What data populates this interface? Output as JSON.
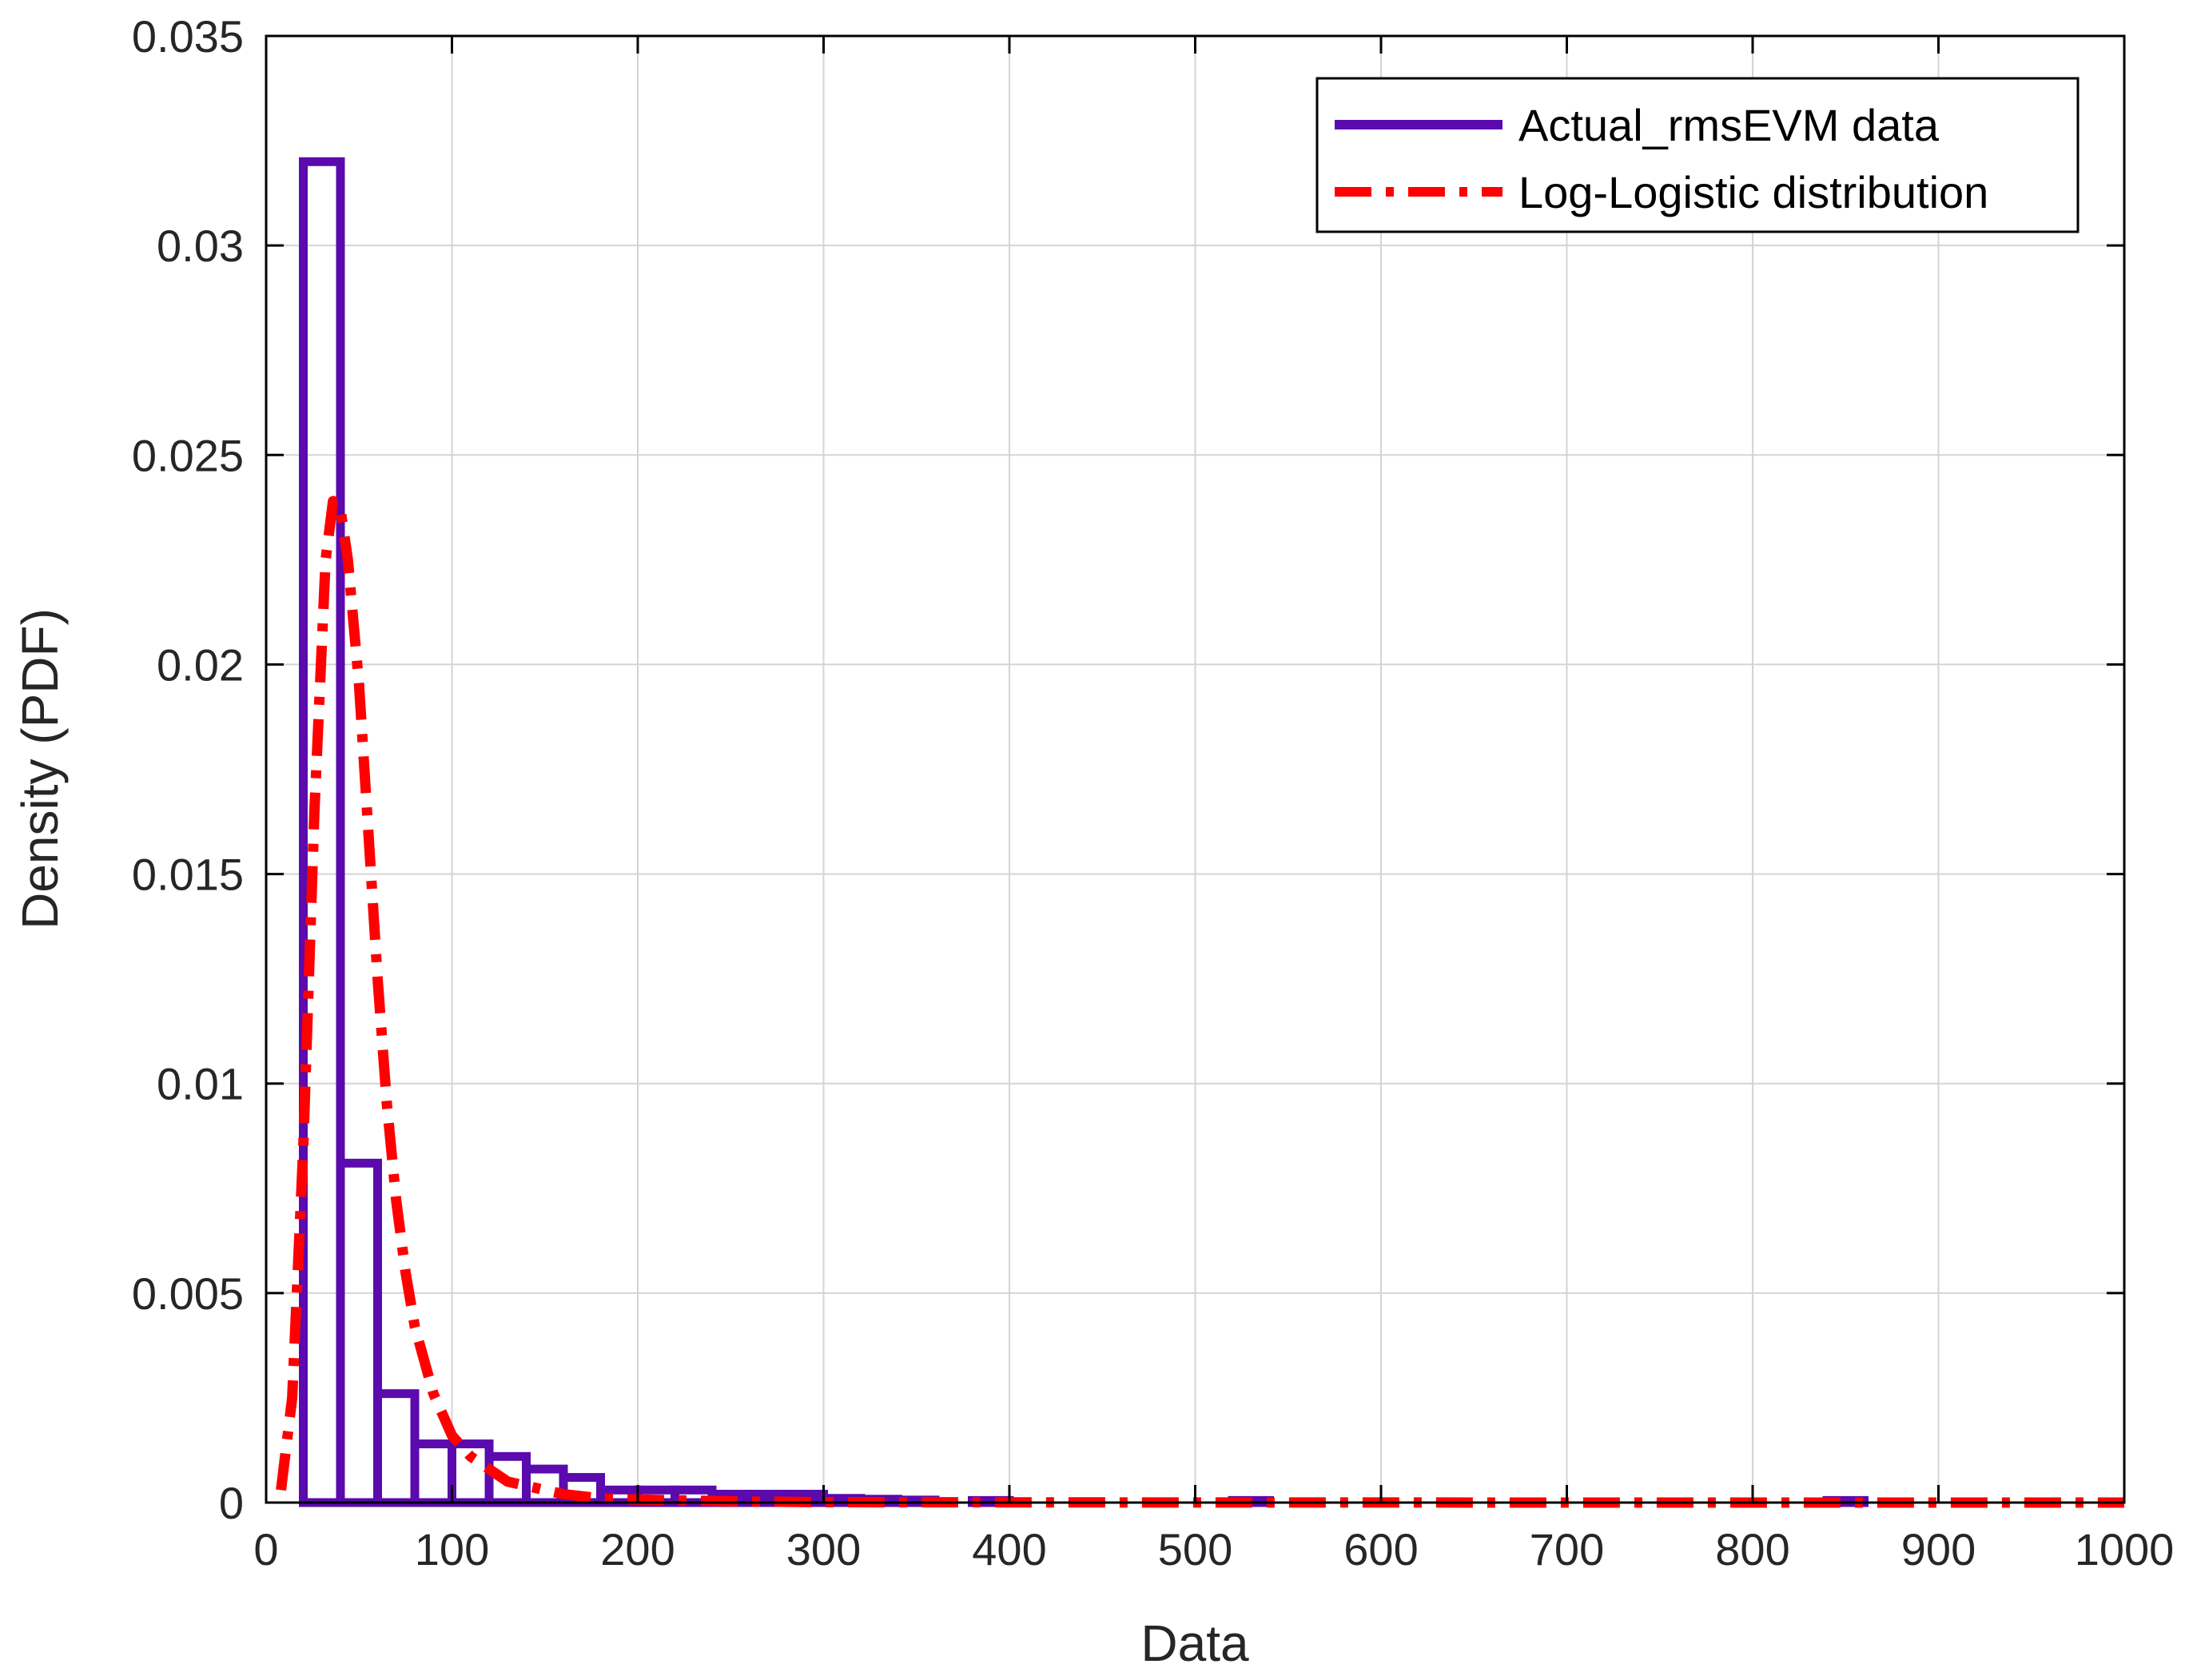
{
  "chart_data": {
    "type": "bar",
    "xlabel": "Data",
    "ylabel": "Density (PDF)",
    "xlim": [
      0,
      1000
    ],
    "ylim": [
      0,
      0.035
    ],
    "xticks": [
      "0",
      "100",
      "200",
      "300",
      "400",
      "500",
      "600",
      "700",
      "800",
      "900",
      "1000"
    ],
    "yticks": [
      "0",
      "0.005",
      "0.01",
      "0.015",
      "0.02",
      "0.025",
      "0.03",
      "0.035"
    ],
    "grid": true,
    "legend_position": "top-right",
    "series": [
      {
        "name": "Actual_rmsEVM data",
        "kind": "histogram",
        "color": "#5a0aad",
        "bin_width": 20,
        "bins": [
          {
            "x0": 20,
            "x1": 40,
            "y": 0.032
          },
          {
            "x0": 40,
            "x1": 60,
            "y": 0.0081
          },
          {
            "x0": 60,
            "x1": 80,
            "y": 0.0026
          },
          {
            "x0": 80,
            "x1": 100,
            "y": 0.0014
          },
          {
            "x0": 100,
            "x1": 120,
            "y": 0.0014
          },
          {
            "x0": 120,
            "x1": 140,
            "y": 0.0011
          },
          {
            "x0": 140,
            "x1": 160,
            "y": 0.0008
          },
          {
            "x0": 160,
            "x1": 180,
            "y": 0.0006
          },
          {
            "x0": 180,
            "x1": 200,
            "y": 0.0003
          },
          {
            "x0": 200,
            "x1": 220,
            "y": 0.0003
          },
          {
            "x0": 220,
            "x1": 240,
            "y": 0.0003
          },
          {
            "x0": 240,
            "x1": 260,
            "y": 0.0002
          },
          {
            "x0": 260,
            "x1": 280,
            "y": 0.0002
          },
          {
            "x0": 280,
            "x1": 300,
            "y": 0.0002
          },
          {
            "x0": 300,
            "x1": 320,
            "y": 0.0001
          },
          {
            "x0": 320,
            "x1": 340,
            "y": 8e-05
          },
          {
            "x0": 340,
            "x1": 360,
            "y": 6e-05
          },
          {
            "x0": 380,
            "x1": 400,
            "y": 5e-05
          },
          {
            "x0": 520,
            "x1": 540,
            "y": 5e-05
          },
          {
            "x0": 840,
            "x1": 860,
            "y": 5e-05
          }
        ]
      },
      {
        "name": "Log-Logistic distribution",
        "kind": "line",
        "style": "dash-dot",
        "color": "#ff0000",
        "x": [
          8,
          14,
          20,
          26,
          32,
          36,
          40,
          44,
          50,
          55,
          60,
          65,
          70,
          75,
          80,
          90,
          100,
          110,
          120,
          130,
          140,
          150,
          160,
          180,
          200,
          250,
          300,
          400,
          500,
          600,
          700,
          800,
          900,
          1000
        ],
        "y": [
          0.0003,
          0.0025,
          0.0085,
          0.0165,
          0.0225,
          0.0239,
          0.0237,
          0.0225,
          0.0195,
          0.016,
          0.0125,
          0.0095,
          0.0072,
          0.0055,
          0.0042,
          0.0026,
          0.0016,
          0.0011,
          0.0008,
          0.0005,
          0.0004,
          0.0003,
          0.0002,
          0.0001,
          7e-05,
          3e-05,
          1e-05,
          5e-06,
          2e-06,
          1e-06,
          0,
          0,
          0,
          0
        ]
      }
    ]
  }
}
